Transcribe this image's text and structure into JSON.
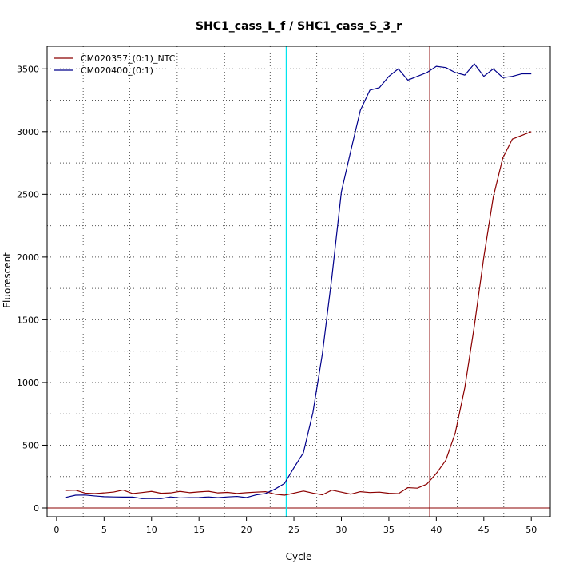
{
  "chart_data": {
    "type": "line",
    "title": "SHC1_cass_L_f / SHC1_cass_S_3_r",
    "xlabel": "Cycle",
    "ylabel": "Fluorescent",
    "xlim": [
      -1,
      52
    ],
    "ylim": [
      -70,
      3680
    ],
    "x_ticks": [
      0,
      5,
      10,
      15,
      20,
      25,
      30,
      35,
      40,
      45,
      50
    ],
    "y_ticks": [
      0,
      500,
      1000,
      1500,
      2000,
      2500,
      3000,
      3500
    ],
    "x_tick_labels": [
      "0",
      "5",
      "10",
      "15",
      "20",
      "25",
      "30",
      "35",
      "40",
      "45",
      "50"
    ],
    "y_tick_labels": [
      "0",
      "500",
      "1000",
      "1500",
      "2000",
      "2500",
      "3000",
      "3500"
    ],
    "grid": true,
    "x_dotted_grid": [
      2.8,
      7.7,
      12.7,
      17.7,
      22.5,
      27.4,
      32.3,
      37.2,
      42.2,
      47.1
    ],
    "y_dotted_grid": [
      250,
      500,
      750,
      1000,
      1250,
      1500,
      1750,
      2000,
      2250,
      2500,
      2750,
      3000,
      3250,
      3500
    ],
    "legend_position": "top-left",
    "threshold_y": 0,
    "threshold_color": "#8b0000",
    "vlines": [
      {
        "x": 24.2,
        "color": "#00e5ee"
      },
      {
        "x": 39.3,
        "color": "#8b0000"
      }
    ],
    "x": [
      1,
      2,
      3,
      4,
      5,
      6,
      7,
      8,
      9,
      10,
      11,
      12,
      13,
      14,
      15,
      16,
      17,
      18,
      19,
      20,
      21,
      22,
      23,
      24,
      25,
      26,
      27,
      28,
      29,
      30,
      31,
      32,
      33,
      34,
      35,
      36,
      37,
      38,
      39,
      40,
      41,
      42,
      43,
      44,
      45,
      46,
      47,
      48,
      49,
      50
    ],
    "series": [
      {
        "name": "CM020357_(0:1)_NTC",
        "color": "#8b0000",
        "values": [
          140,
          142,
          118,
          115,
          120,
          127,
          143,
          115,
          123,
          132,
          117,
          120,
          132,
          122,
          128,
          133,
          120,
          124,
          116,
          122,
          126,
          130,
          110,
          102,
          118,
          135,
          118,
          105,
          142,
          126,
          110,
          130,
          123,
          126,
          117,
          114,
          162,
          158,
          190,
          275,
          380,
          600,
          960,
          1450,
          2000,
          2480,
          2790,
          2940,
          2970,
          3000
        ]
      },
      {
        "name": "CM020400_(0:1)",
        "color": "#00008b",
        "values": [
          85,
          102,
          103,
          96,
          90,
          88,
          87,
          87,
          75,
          76,
          75,
          88,
          80,
          82,
          83,
          88,
          82,
          88,
          92,
          83,
          104,
          115,
          150,
          195,
          320,
          440,
          760,
          1230,
          1840,
          2520,
          2850,
          3170,
          3330,
          3350,
          3440,
          3500,
          3410,
          3440,
          3470,
          3520,
          3510,
          3470,
          3450,
          3540,
          3440,
          3500,
          3430,
          3440,
          3460,
          3460
        ]
      }
    ]
  }
}
